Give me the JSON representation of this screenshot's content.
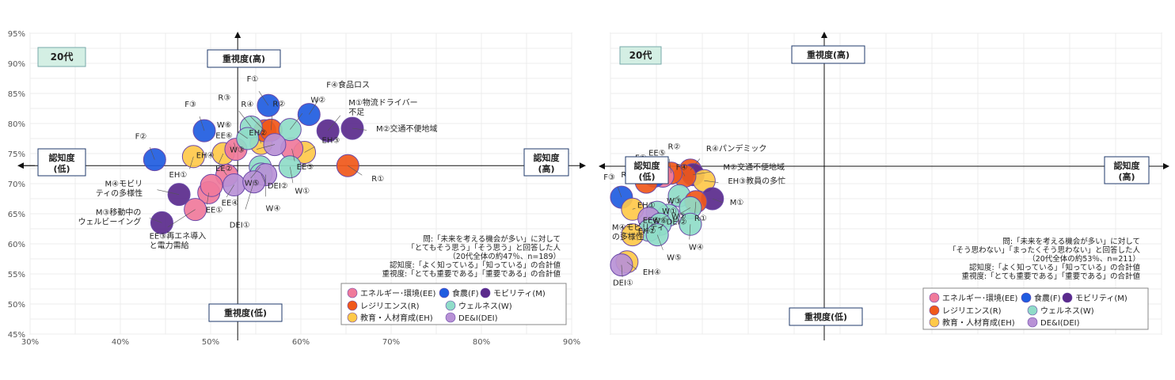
{
  "colors": {
    "EE": "#f07a9b",
    "F": "#1f5ce0",
    "M": "#5a2a8c",
    "R": "#f0581a",
    "W": "#8fdcc8",
    "EH": "#ffc94a",
    "DEI": "#b891d6"
  },
  "legend_items": [
    {
      "key": "EE",
      "label": "エネルギー･環境(EE)"
    },
    {
      "key": "F",
      "label": "食農(F)"
    },
    {
      "key": "M",
      "label": "モビリティ(M)"
    },
    {
      "key": "R",
      "label": "レジリエンス(R)"
    },
    {
      "key": "W",
      "label": "ウェルネス(W)"
    },
    {
      "key": "EH",
      "label": "教育・人材育成(EH)"
    },
    {
      "key": "DEI",
      "label": "DE&I(DEI)"
    }
  ],
  "chart_data": [
    {
      "type": "scatter",
      "group_label": "20代",
      "quadrant_labels": {
        "top": "重視度(高)",
        "bottom": "重視度(低)",
        "left": [
          "認知度",
          "(低)"
        ],
        "right": [
          "認知度",
          "(高)"
        ]
      },
      "x_ticks": [
        "30%",
        "40%",
        "50%",
        "60%",
        "70%",
        "80%",
        "90%"
      ],
      "y_ticks": [
        "45%",
        "50%",
        "55%",
        "60%",
        "65%",
        "70%",
        "75%",
        "80%",
        "85%",
        "90%",
        "95%"
      ],
      "xlim": [
        0.3,
        0.9
      ],
      "ylim": [
        0.45,
        0.95
      ],
      "x_axis_cross": 0.73,
      "y_axis_cross": 0.53,
      "note": [
        "問:「未来を考える機会が多い」に対して",
        "「とてもそう思う」「そう思う」と回答した人",
        "（20代全体の約47％、n=189）",
        "認知度:「よく知っている」「知っている」の合計値",
        "重視度:「とても重要である」「重要である」の合計値"
      ],
      "points": [
        {
          "label": "F②",
          "cat": "F",
          "x": 0.438,
          "y": 0.74
        },
        {
          "label": "F③",
          "cat": "F",
          "x": 0.493,
          "y": 0.788
        },
        {
          "label": "F①",
          "cat": "F",
          "x": 0.564,
          "y": 0.83
        },
        {
          "label": "F④食品ロス",
          "cat": "F",
          "x": 0.609,
          "y": 0.815
        },
        {
          "label": "EH①",
          "cat": "EH",
          "x": 0.481,
          "y": 0.745
        },
        {
          "label": "EE②",
          "cat": "EH",
          "x": 0.514,
          "y": 0.75
        },
        {
          "label": "EH②",
          "cat": "EH",
          "x": 0.556,
          "y": 0.767
        },
        {
          "label": "EH③",
          "cat": "EH",
          "x": 0.604,
          "y": 0.752
        },
        {
          "label": "EE⑥",
          "cat": "EE",
          "x": 0.528,
          "y": 0.757
        },
        {
          "label": "EE⑤",
          "cat": "EE",
          "x": 0.59,
          "y": 0.758
        },
        {
          "label": "EH④",
          "cat": "EE",
          "x": 0.518,
          "y": 0.714
        },
        {
          "label": "EE①",
          "cat": "EE",
          "x": 0.498,
          "y": 0.685
        },
        {
          "label": "",
          "cat": "EE",
          "x": 0.501,
          "y": 0.697
        },
        {
          "label": "EE③再エネ導入\nと電力需給",
          "cat": "EE",
          "x": 0.483,
          "y": 0.657
        },
        {
          "label": "R④",
          "cat": "R",
          "x": 0.56,
          "y": 0.788
        },
        {
          "label": "R②",
          "cat": "R",
          "x": 0.567,
          "y": 0.789
        },
        {
          "label": "R①",
          "cat": "R",
          "x": 0.652,
          "y": 0.73
        },
        {
          "label": "R③",
          "cat": "W",
          "x": 0.545,
          "y": 0.794
        },
        {
          "label": "W②",
          "cat": "W",
          "x": 0.588,
          "y": 0.79
        },
        {
          "label": "W⑥",
          "cat": "W",
          "x": 0.541,
          "y": 0.775
        },
        {
          "label": "W⑤",
          "cat": "W",
          "x": 0.555,
          "y": 0.728
        },
        {
          "label": "DEI②",
          "cat": "W",
          "x": 0.556,
          "y": 0.716
        },
        {
          "label": "W①",
          "cat": "W",
          "x": 0.588,
          "y": 0.728
        },
        {
          "label": "W③",
          "cat": "DEI",
          "x": 0.571,
          "y": 0.765
        },
        {
          "label": "EE④",
          "cat": "DEI",
          "x": 0.526,
          "y": 0.698
        },
        {
          "label": "W④",
          "cat": "DEI",
          "x": 0.561,
          "y": 0.715
        },
        {
          "label": "DEI①",
          "cat": "DEI",
          "x": 0.548,
          "y": 0.703
        },
        {
          "label": "M①物流ドライバー\n不足",
          "cat": "M",
          "x": 0.63,
          "y": 0.788
        },
        {
          "label": "M②交通不便地域",
          "cat": "M",
          "x": 0.657,
          "y": 0.792
        },
        {
          "label": "M④モビリ\nティの多様性",
          "cat": "M",
          "x": 0.465,
          "y": 0.682
        },
        {
          "label": "M③移動中の\nウェルビーイング",
          "cat": "M",
          "x": 0.446,
          "y": 0.635
        }
      ]
    },
    {
      "type": "scatter",
      "group_label": "20代",
      "quadrant_labels": {
        "top": "重視度(高)",
        "bottom": "重視度(低)",
        "left": [
          "認知度",
          "(低)"
        ],
        "right": [
          "認知度",
          "(高)"
        ]
      },
      "note": [
        "問:「未来を考える機会が多い」に対して",
        "「そう思わない」「まったくそう思わない」と回答した人",
        "（20代全体の約53％、n=211）",
        "認知度:「よく知っている」「知っている」の合計値",
        "重視度:「とても重要である」「重要である」の合計値"
      ],
      "points": [
        {
          "label": "R④パンデミック",
          "cat": "R",
          "x": 0.145,
          "y": 0.545
        },
        {
          "label": "M②交通不便地域",
          "cat": "M",
          "x": 0.15,
          "y": 0.53
        },
        {
          "label": "EH③教員の多忙",
          "cat": "EH",
          "x": 0.17,
          "y": 0.51
        },
        {
          "label": "F④",
          "cat": "R",
          "x": 0.135,
          "y": 0.525
        },
        {
          "label": "R②",
          "cat": "R",
          "x": 0.11,
          "y": 0.535
        },
        {
          "label": "EE⑤",
          "cat": "EE",
          "x": 0.095,
          "y": 0.525
        },
        {
          "label": "F①",
          "cat": "F",
          "x": 0.08,
          "y": 0.525
        },
        {
          "label": "R③",
          "cat": "R",
          "x": 0.065,
          "y": 0.505
        },
        {
          "label": "F③",
          "cat": "F",
          "x": 0.02,
          "y": 0.455
        },
        {
          "label": "EH①",
          "cat": "EH",
          "x": 0.04,
          "y": 0.415
        },
        {
          "label": "W③",
          "cat": "W",
          "x": 0.125,
          "y": 0.46
        },
        {
          "label": "M①",
          "cat": "M",
          "x": 0.185,
          "y": 0.45
        },
        {
          "label": "R①",
          "cat": "R",
          "x": 0.155,
          "y": 0.44
        },
        {
          "label": "W②",
          "cat": "W",
          "x": 0.145,
          "y": 0.42
        },
        {
          "label": "W⑥",
          "cat": "W",
          "x": 0.105,
          "y": 0.395
        },
        {
          "label": "W①",
          "cat": "W",
          "x": 0.085,
          "y": 0.405
        },
        {
          "label": "EE⑥",
          "cat": "DEI",
          "x": 0.07,
          "y": 0.385
        },
        {
          "label": "W④",
          "cat": "W",
          "x": 0.145,
          "y": 0.365
        },
        {
          "label": "DEI②",
          "cat": "W",
          "x": 0.09,
          "y": 0.365
        },
        {
          "label": "EH②",
          "cat": "W",
          "x": 0.07,
          "y": 0.345
        },
        {
          "label": "W⑤",
          "cat": "W",
          "x": 0.085,
          "y": 0.33
        },
        {
          "label": "M④モビリティ\nの多様性",
          "cat": "EH",
          "x": 0.04,
          "y": 0.33
        },
        {
          "label": "EH④",
          "cat": "EH",
          "x": 0.03,
          "y": 0.24
        },
        {
          "label": "DEI①",
          "cat": "DEI",
          "x": 0.02,
          "y": 0.23
        }
      ]
    }
  ]
}
